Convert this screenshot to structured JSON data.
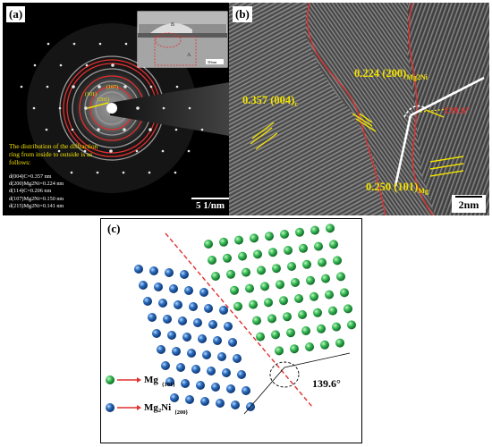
{
  "figure": {
    "panel_a": {
      "label": "(a)",
      "scale_bar": "5 1/nm",
      "inset_scale": "50nm",
      "inset_letters": [
        "B",
        "A"
      ],
      "ring_labels": [
        "(101)",
        "(107)",
        "(201)"
      ],
      "description": "The distribution of the diffraction ring from inside to outside is as follows:",
      "d_spacings": [
        "d(004)C=0.357 nm",
        "d(200)Mg2Ni=0.224 nm",
        "d(114)C=0.206 nm",
        "d(107)Mg2Ni=0.150 nm",
        "d(215)Mg2Ni=0.141 nm"
      ]
    },
    "panel_b": {
      "label": "(b)",
      "scale_bar": "2nm",
      "angle": "139.6°",
      "fringe_c": {
        "value": "0.357 (004)",
        "sub": "c"
      },
      "fringe_mg2ni": {
        "value": "0.224 (200)",
        "sub": "Mg2Ni"
      },
      "fringe_mg": {
        "value": "0.250 (101)",
        "sub": "Mg"
      }
    },
    "panel_c": {
      "label": "(c)",
      "angle": "139.6°",
      "legend": [
        {
          "name": "Mg",
          "plane": "{101}",
          "color": "#3dbf5a"
        },
        {
          "name": "Mg₂Ni",
          "plane": "{200}",
          "color": "#2c6fc0"
        }
      ]
    }
  }
}
